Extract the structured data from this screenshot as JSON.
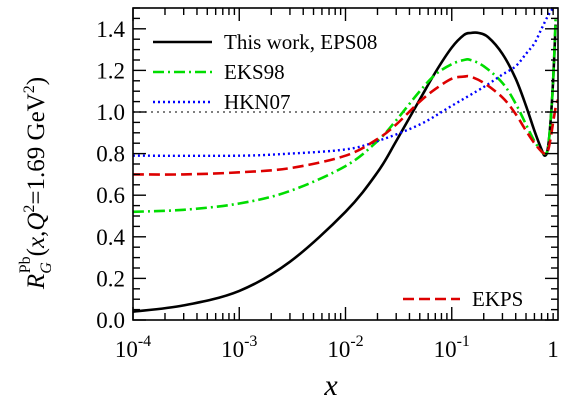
{
  "chart_data": {
    "type": "line",
    "xlabel": "x",
    "ylabel": {
      "main": "R",
      "sub": "G",
      "sup": "Pb",
      "rest_open": "(",
      "x": "x",
      "comma": ",",
      "q": "Q",
      "q_sup": "2",
      "eq": "=1.69 GeV",
      "gev_sup": "2",
      "rest_close": ")"
    },
    "x_scale": "log",
    "xlim": [
      0.0001,
      1
    ],
    "ylim": [
      0.0,
      1.5
    ],
    "x_ticks": [
      {
        "base": "10",
        "exp": "-4",
        "value": 0.0001
      },
      {
        "base": "10",
        "exp": "-3",
        "value": 0.001
      },
      {
        "base": "10",
        "exp": "-2",
        "value": 0.01
      },
      {
        "base": "10",
        "exp": "-1",
        "value": 0.1
      },
      {
        "base": "1",
        "exp": "",
        "value": 1
      }
    ],
    "y_ticks": [
      "0.0",
      "0.2",
      "0.4",
      "0.6",
      "0.8",
      "1.0",
      "1.2",
      "1.4"
    ],
    "reference_line": 1.0,
    "legend": [
      {
        "label": "This work, EPS08",
        "color": "#000000",
        "dash": "solid"
      },
      {
        "label": "EKS98",
        "color": "#00dd00",
        "dash": "dashdot"
      },
      {
        "label": "HKN07",
        "color": "#0000ff",
        "dash": "dotted"
      }
    ],
    "legend2": [
      {
        "label": "EKPS",
        "color": "#dd0000",
        "dash": "dashed"
      }
    ],
    "series": [
      {
        "name": "This work, EPS08",
        "color": "#000000",
        "dash": "solid",
        "x": [
          0.0001,
          0.0003,
          0.001,
          0.003,
          0.01,
          0.02,
          0.03,
          0.05,
          0.07,
          0.1,
          0.13,
          0.15,
          0.18,
          0.22,
          0.3,
          0.4,
          0.5,
          0.6,
          0.7,
          0.75,
          0.8,
          0.85,
          0.9,
          0.95
        ],
        "y": [
          0.04,
          0.07,
          0.14,
          0.28,
          0.52,
          0.71,
          0.86,
          1.06,
          1.19,
          1.31,
          1.37,
          1.38,
          1.38,
          1.36,
          1.28,
          1.16,
          1.03,
          0.91,
          0.82,
          0.79,
          0.82,
          0.95,
          1.15,
          1.42
        ]
      },
      {
        "name": "EKS98",
        "color": "#00dd00",
        "dash": "dashdot",
        "x": [
          0.0001,
          0.0003,
          0.001,
          0.003,
          0.01,
          0.02,
          0.03,
          0.05,
          0.07,
          0.1,
          0.13,
          0.15,
          0.2,
          0.3,
          0.4,
          0.5,
          0.6,
          0.7,
          0.75,
          0.8,
          0.85,
          0.9,
          0.95
        ],
        "y": [
          0.52,
          0.53,
          0.56,
          0.62,
          0.74,
          0.86,
          0.96,
          1.1,
          1.18,
          1.23,
          1.25,
          1.25,
          1.22,
          1.14,
          1.04,
          0.94,
          0.86,
          0.81,
          0.8,
          0.82,
          0.95,
          1.15,
          1.45
        ]
      },
      {
        "name": "HKN07",
        "color": "#0000ff",
        "dash": "dotted",
        "x": [
          0.0001,
          0.001,
          0.003,
          0.01,
          0.02,
          0.05,
          0.1,
          0.2,
          0.3,
          0.4,
          0.5,
          0.6,
          0.7,
          0.8,
          0.9
        ],
        "y": [
          0.79,
          0.79,
          0.8,
          0.82,
          0.86,
          0.94,
          1.03,
          1.12,
          1.18,
          1.22,
          1.28,
          1.33,
          1.4,
          1.46,
          1.5
        ]
      },
      {
        "name": "EKPS",
        "color": "#dd0000",
        "dash": "dashed",
        "x": [
          0.0001,
          0.0003,
          0.001,
          0.003,
          0.01,
          0.02,
          0.03,
          0.05,
          0.07,
          0.1,
          0.13,
          0.15,
          0.2,
          0.3,
          0.4,
          0.5,
          0.6,
          0.7,
          0.75,
          0.8,
          0.85,
          0.9,
          0.95,
          1.0
        ],
        "y": [
          0.7,
          0.7,
          0.71,
          0.73,
          0.79,
          0.87,
          0.94,
          1.05,
          1.11,
          1.16,
          1.17,
          1.17,
          1.14,
          1.07,
          0.99,
          0.91,
          0.85,
          0.81,
          0.8,
          0.81,
          0.87,
          0.95,
          1.02,
          1.06
        ]
      }
    ]
  }
}
